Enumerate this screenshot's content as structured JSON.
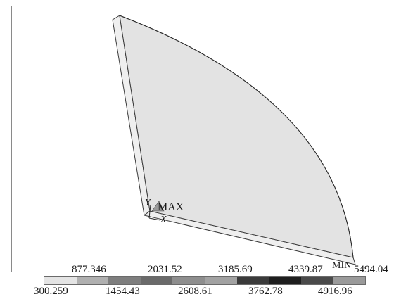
{
  "viewport": {
    "max_label": "MAX",
    "min_label": "MIN",
    "triad": {
      "y_label": "Y",
      "x_label": "X"
    }
  },
  "legend": {
    "top_values": [
      "877.346",
      "2031.52",
      "3185.69",
      "4339.87",
      "5494.04"
    ],
    "bottom_values": [
      "300.259",
      "1454.43",
      "2608.61",
      "3762.78",
      "4916.96"
    ],
    "band_colors": [
      "#e4e4e4",
      "#b0b0b0",
      "#7e7e7e",
      "#6a6a6a",
      "#8e8e8e",
      "#a2a2a2",
      "#3a3a3a",
      "#1e1e1e",
      "#4a4a4a",
      "#9a9a9a"
    ]
  },
  "colors": {
    "model_face": "#e3e3e3",
    "model_edge_face": "#efefef",
    "outline": "#3a3a3a"
  }
}
